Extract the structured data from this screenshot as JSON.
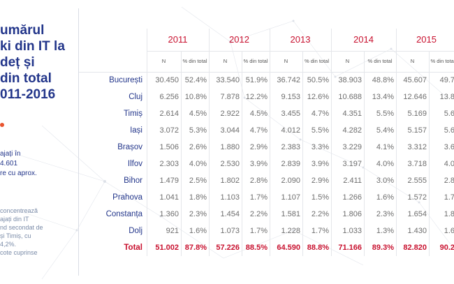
{
  "left": {
    "title_lines": [
      "umărul",
      "ki din IT la",
      "deț și",
      "din total",
      "011-2016"
    ],
    "note1_lines": [
      "ajați în",
      "4.601",
      "re cu aprox."
    ],
    "note2_lines": [
      "concentrează",
      "ajați din IT",
      "nd secondat de",
      "și Timiș, cu",
      "4,2%.",
      "cote cuprinse"
    ]
  },
  "table": {
    "years": [
      "2011",
      "2012",
      "2013",
      "2014",
      "2015"
    ],
    "sub_n": "N",
    "sub_pct": "% din total",
    "rows": [
      {
        "label": "București",
        "cells": [
          "30.450",
          "52.4%",
          "33.540",
          "51.9%",
          "36.742",
          "50.5%",
          "38.903",
          "48.8%",
          "45.607",
          "49.7"
        ]
      },
      {
        "label": "Cluj",
        "cells": [
          "6.256",
          "10.8%",
          "7.878",
          "12.2%",
          "9.153",
          "12.6%",
          "10.688",
          "13.4%",
          "12.646",
          "13.8"
        ]
      },
      {
        "label": "Timiș",
        "cells": [
          "2.614",
          "4.5%",
          "2.922",
          "4.5%",
          "3.455",
          "4.7%",
          "4.351",
          "5.5%",
          "5.169",
          "5.6"
        ]
      },
      {
        "label": "Iași",
        "cells": [
          "3.072",
          "5.3%",
          "3.044",
          "4.7%",
          "4.012",
          "5.5%",
          "4.282",
          "5.4%",
          "5.157",
          "5.6"
        ]
      },
      {
        "label": "Brașov",
        "cells": [
          "1.506",
          "2.6%",
          "1.880",
          "2.9%",
          "2.383",
          "3.3%",
          "3.229",
          "4.1%",
          "3.312",
          "3.6"
        ]
      },
      {
        "label": "Ilfov",
        "cells": [
          "2.303",
          "4.0%",
          "2.530",
          "3.9%",
          "2.839",
          "3.9%",
          "3.197",
          "4.0%",
          "3.718",
          "4.0"
        ]
      },
      {
        "label": "Bihor",
        "cells": [
          "1.479",
          "2.5%",
          "1.802",
          "2.8%",
          "2.090",
          "2.9%",
          "2.411",
          "3.0%",
          "2.555",
          "2.8"
        ]
      },
      {
        "label": "Prahova",
        "cells": [
          "1.041",
          "1.8%",
          "1.103",
          "1.7%",
          "1.107",
          "1.5%",
          "1.266",
          "1.6%",
          "1.572",
          "1.7"
        ]
      },
      {
        "label": "Constanța",
        "cells": [
          "1.360",
          "2.3%",
          "1.454",
          "2.2%",
          "1.581",
          "2.2%",
          "1.806",
          "2.3%",
          "1.654",
          "1.8"
        ]
      },
      {
        "label": "Dolj",
        "cells": [
          "921",
          "1.6%",
          "1.073",
          "1.7%",
          "1.228",
          "1.7%",
          "1.033",
          "1.3%",
          "1.430",
          "1.6"
        ]
      }
    ],
    "total": {
      "label": "Total",
      "cells": [
        "51.002",
        "87.8%",
        "57.226",
        "88.5%",
        "64.590",
        "88.8%",
        "71.166",
        "89.3%",
        "82.820",
        "90.2"
      ]
    }
  }
}
